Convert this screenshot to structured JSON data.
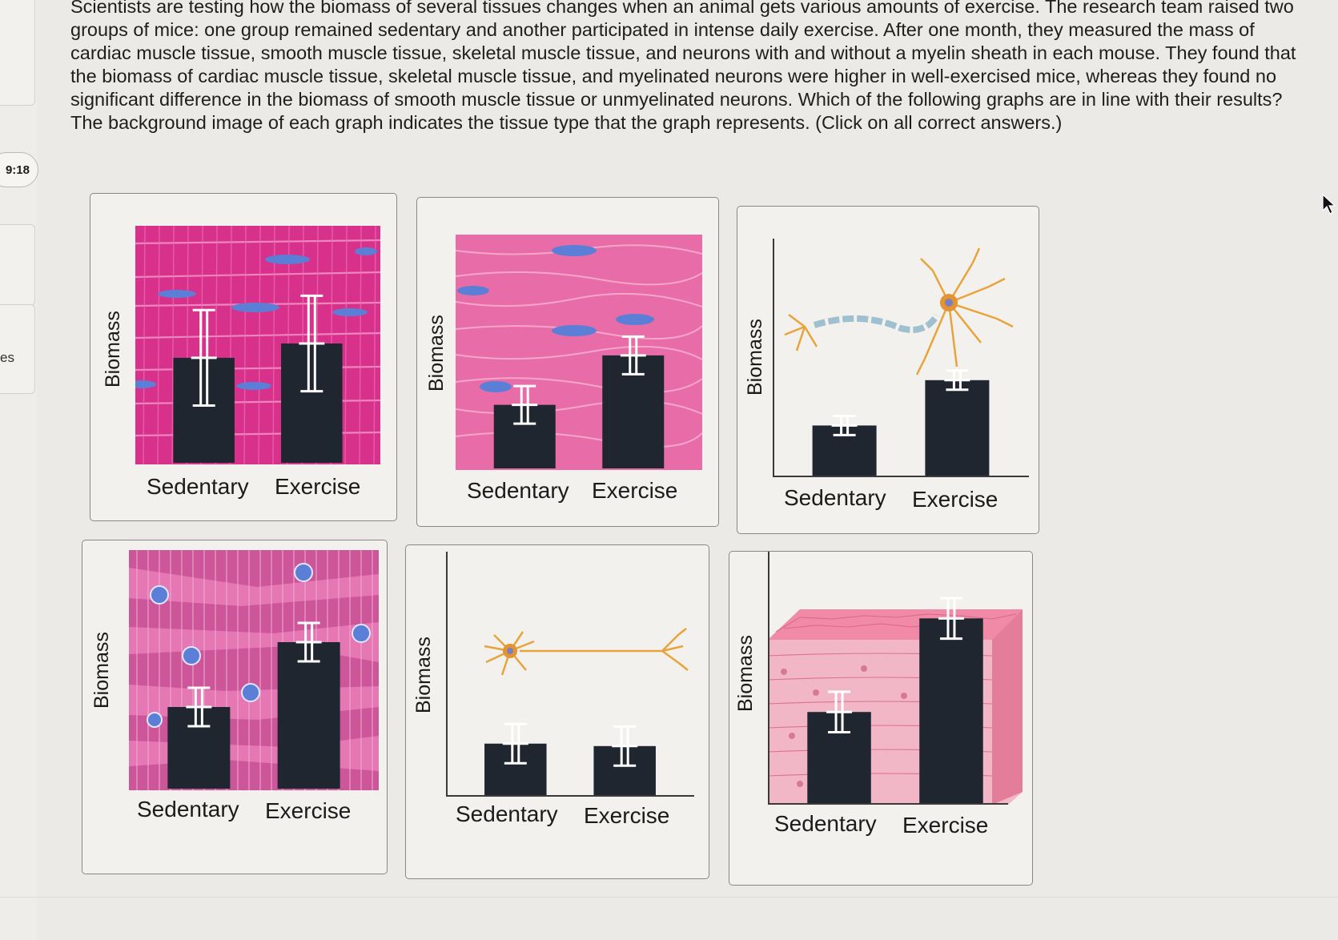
{
  "sidebar": {
    "timer": "9:18",
    "partial_label": "es"
  },
  "question": {
    "text": "Scientists are testing how the biomass of several tissues changes when an animal gets various amounts of exercise. The research team raised two groups of mice: one group remained sedentary and another participated in intense daily exercise. After one month, they measured the mass of cardiac muscle tissue, smooth muscle tissue, skeletal muscle tissue, and neurons with and without a myelin sheath in each mouse. They found that the biomass of cardiac muscle tissue, skeletal muscle tissue, and myelinated neurons were higher in well-exercised mice, whereas they found no significant difference in the biomass of smooth muscle tissue or unmyelinated neurons. Which of the following graphs are in line with their results? The background image of each graph indicates the tissue type that the graph represents. (Click on all correct answers.)"
  },
  "graphs": [
    {
      "y_label": "Biomass",
      "x_labels": [
        "Sedentary",
        "Exercise"
      ],
      "tissue": "skeletal-muscle",
      "bars": [
        0.44,
        0.5
      ],
      "errors": [
        0.2,
        0.2
      ]
    },
    {
      "y_label": "Biomass",
      "x_labels": [
        "Sedentary",
        "Exercise"
      ],
      "tissue": "smooth-muscle",
      "bars": [
        0.27,
        0.48
      ],
      "errors": [
        0.08,
        0.08
      ]
    },
    {
      "y_label": "Biomass",
      "x_labels": [
        "Sedentary",
        "Exercise"
      ],
      "tissue": "myelinated-neuron",
      "bars": [
        0.21,
        0.4
      ],
      "errors": [
        0.04,
        0.04
      ]
    },
    {
      "y_label": "Biomass",
      "x_labels": [
        "Sedentary",
        "Exercise"
      ],
      "tissue": "cardiac-muscle",
      "bars": [
        0.34,
        0.61
      ],
      "errors": [
        0.08,
        0.08
      ]
    },
    {
      "y_label": "Biomass",
      "x_labels": [
        "Sedentary",
        "Exercise"
      ],
      "tissue": "unmyelinated-neuron",
      "bars": [
        0.21,
        0.2
      ],
      "errors": [
        0.08,
        0.08
      ]
    },
    {
      "y_label": "Biomass",
      "x_labels": [
        "Sedentary",
        "Exercise"
      ],
      "tissue": "epithelial-tissue",
      "bars": [
        0.36,
        0.73
      ],
      "errors": [
        0.08,
        0.08
      ]
    }
  ],
  "colors": {
    "bar": "#1f2630",
    "error_bar": "#ffffff",
    "muscle_pink": "#e35aa0",
    "nucleus": "#5b7fd6",
    "neuron": "#e8a43a"
  }
}
